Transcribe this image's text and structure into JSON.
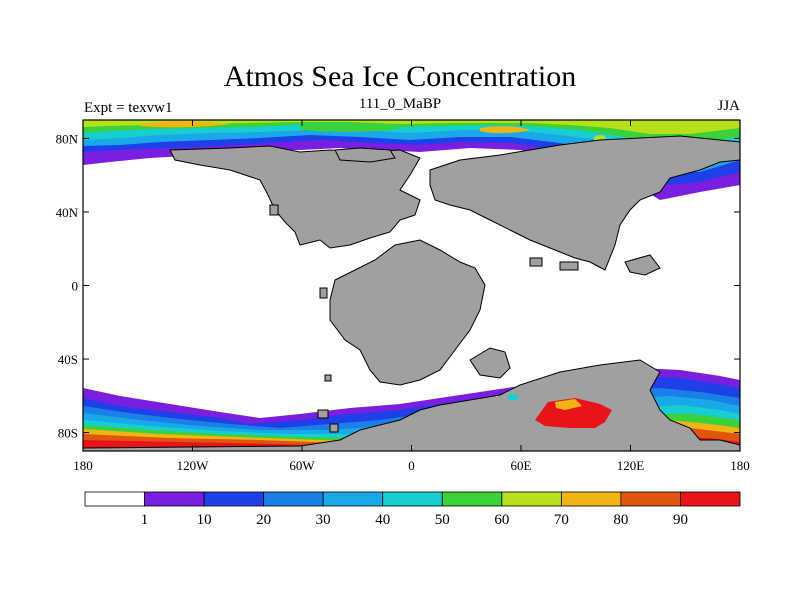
{
  "title": "Atmos Sea Ice Concentration",
  "left_label": "Expt = texvw1",
  "center_label": "111_0_MaBP",
  "right_label": "JJA",
  "lat_labels": [
    "80N",
    "40N",
    "0",
    "40S",
    "80S"
  ],
  "lat_values": [
    80,
    40,
    0,
    -40,
    -80
  ],
  "lon_labels": [
    "180",
    "120W",
    "60W",
    "0",
    "60E",
    "120E",
    "180"
  ],
  "lon_values": [
    -180,
    -120,
    -60,
    0,
    60,
    120,
    180
  ],
  "colorbar": {
    "levels": [
      "1",
      "10",
      "20",
      "30",
      "40",
      "50",
      "60",
      "70",
      "80",
      "90"
    ],
    "colors": [
      "#ffffff",
      "#7a1fe0",
      "#1f3fe8",
      "#1a7fe6",
      "#1aa9e8",
      "#17cfcf",
      "#3ad13a",
      "#b5e01a",
      "#f0b414",
      "#e0560f",
      "#e8141a"
    ]
  },
  "map": {
    "land_color": "#a0a0a0",
    "ocean_color": "#ffffff",
    "coastline_color": "#000000"
  }
}
